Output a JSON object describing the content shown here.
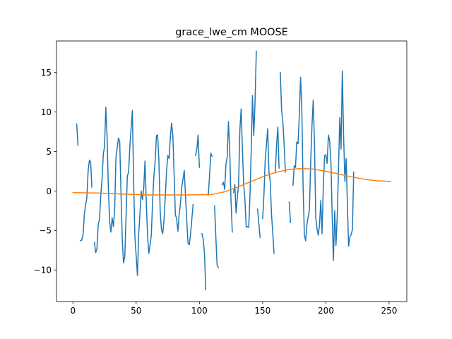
{
  "chart_data": {
    "type": "line",
    "title": "grace_lwe_cm MOOSE",
    "xlabel": "",
    "ylabel": "",
    "xlim": [
      -13,
      264
    ],
    "ylim": [
      -14,
      19
    ],
    "x_ticks": [
      0,
      50,
      100,
      150,
      200,
      250
    ],
    "y_ticks": [
      -10,
      -5,
      0,
      5,
      10,
      15
    ],
    "grid": false,
    "series": [
      {
        "color": "#1f77b4",
        "segments": [
          [
            [
              3,
              8.5
            ],
            [
              4,
              5.8
            ]
          ],
          [
            [
              6,
              -6.3
            ],
            [
              7,
              -6.2
            ],
            [
              8,
              -5.5
            ],
            [
              9,
              -3
            ],
            [
              10,
              -1.8
            ],
            [
              11,
              -0.8
            ],
            [
              12,
              2.6
            ],
            [
              13,
              3.9
            ],
            [
              14,
              3.7
            ],
            [
              15,
              0.5
            ]
          ],
          [
            [
              17,
              -6.5
            ],
            [
              18,
              -7.8
            ],
            [
              19,
              -7.3
            ],
            [
              20,
              -4.2
            ],
            [
              21,
              -3.6
            ],
            [
              22,
              -0.5
            ],
            [
              23,
              1.5
            ],
            [
              24,
              4.7
            ],
            [
              25,
              5.6
            ],
            [
              26,
              10.6
            ],
            [
              27,
              7
            ],
            [
              28,
              0.5
            ],
            [
              29,
              -3.9
            ],
            [
              30,
              -5.2
            ],
            [
              31,
              -3.4
            ],
            [
              32,
              -4.5
            ],
            [
              33,
              -2.2
            ],
            [
              34,
              4.3
            ],
            [
              35,
              5.4
            ],
            [
              36,
              6.7
            ],
            [
              37,
              6.3
            ],
            [
              38,
              -0.2
            ],
            [
              39,
              -6.1
            ],
            [
              40,
              -9.1
            ],
            [
              41,
              -8.3
            ],
            [
              42,
              -3.2
            ],
            [
              43,
              1.9
            ],
            [
              44,
              2.4
            ],
            [
              45,
              5.7
            ],
            [
              46,
              7.8
            ],
            [
              47,
              10.2
            ],
            [
              48,
              1.3
            ],
            [
              49,
              -5.8
            ],
            [
              50,
              -8.2
            ],
            [
              51,
              -10.7
            ],
            [
              52,
              -5.4
            ],
            [
              53,
              -2.8
            ],
            [
              54,
              0
            ],
            [
              55,
              -1.1
            ],
            [
              56,
              0.5
            ],
            [
              57,
              3.8
            ],
            [
              58,
              -1.4
            ],
            [
              59,
              -5.5
            ],
            [
              60,
              -7.9
            ],
            [
              61,
              -6.8
            ],
            [
              62,
              -5.5
            ],
            [
              63,
              -1.3
            ],
            [
              64,
              1.9
            ],
            [
              65,
              3.8
            ],
            [
              66,
              7
            ],
            [
              67,
              7.1
            ],
            [
              68,
              3.8
            ],
            [
              69,
              -2.5
            ],
            [
              70,
              -4.9
            ],
            [
              71,
              -5.4
            ],
            [
              72,
              -3.7
            ],
            [
              73,
              -0.8
            ],
            [
              74,
              2.5
            ],
            [
              75,
              4.5
            ],
            [
              76,
              4.1
            ],
            [
              77,
              6.8
            ],
            [
              78,
              8.6
            ],
            [
              79,
              7.1
            ],
            [
              80,
              2.2
            ],
            [
              81,
              -3
            ],
            [
              82,
              -3.5
            ],
            [
              83,
              -5.1
            ],
            [
              84,
              -2.9
            ],
            [
              85,
              -1.6
            ],
            [
              86,
              0.5
            ],
            [
              87,
              1.5
            ],
            [
              88,
              2.6
            ],
            [
              89,
              -0.5
            ],
            [
              90,
              -3.7
            ],
            [
              91,
              -6.6
            ],
            [
              92,
              -6.8
            ],
            [
              93,
              -5.5
            ],
            [
              94,
              -3.6
            ],
            [
              95,
              -1.7
            ]
          ],
          [
            [
              97,
              4.5
            ],
            [
              98,
              5.4
            ],
            [
              99,
              7.1
            ],
            [
              100,
              3
            ]
          ],
          [
            [
              102,
              -5.4
            ],
            [
              103,
              -6.1
            ],
            [
              104,
              -7.9
            ],
            [
              105,
              -12.5
            ]
          ],
          [
            [
              107,
              -0.5
            ],
            [
              108,
              1.9
            ],
            [
              109,
              4.8
            ],
            [
              110,
              4.4
            ]
          ],
          [
            [
              112,
              -1.9
            ],
            [
              113,
              -5.8
            ],
            [
              114,
              -9.4
            ],
            [
              115,
              -9.7
            ]
          ],
          [
            [
              118,
              0.8
            ],
            [
              119,
              1.1
            ],
            [
              120,
              0.2
            ],
            [
              121,
              3.4
            ],
            [
              122,
              4.3
            ],
            [
              123,
              8.8
            ],
            [
              124,
              5.1
            ],
            [
              125,
              -1.3
            ],
            [
              126,
              -5.2
            ]
          ],
          [
            [
              127,
              -0.2
            ],
            [
              128,
              0.8
            ],
            [
              129,
              -2.8
            ],
            [
              130,
              -0.7
            ],
            [
              131,
              0.8
            ],
            [
              132,
              7.7
            ],
            [
              133,
              10.4
            ],
            [
              134,
              5.4
            ],
            [
              135,
              0.9
            ],
            [
              136,
              -1.1
            ],
            [
              137,
              -4.6
            ],
            [
              138,
              -4.5
            ],
            [
              139,
              -4.6
            ],
            [
              140,
              -0.4
            ],
            [
              141,
              5.5
            ],
            [
              142,
              12.1
            ],
            [
              143,
              7
            ],
            [
              144,
              11.2
            ],
            [
              145,
              17.7
            ]
          ],
          [
            [
              146,
              -2.3
            ],
            [
              147,
              -4.1
            ],
            [
              148,
              -5.9
            ]
          ],
          [
            [
              150,
              -3.5
            ],
            [
              151,
              -0.5
            ],
            [
              152,
              3.9
            ],
            [
              153,
              5.7
            ],
            [
              154,
              7.9
            ],
            [
              155,
              2.4
            ],
            [
              156,
              1.3
            ],
            [
              157,
              -2.9
            ],
            [
              158,
              -5.3
            ],
            [
              159,
              -7.9
            ]
          ],
          [
            [
              160,
              2.3
            ],
            [
              161,
              5.8
            ],
            [
              162,
              8.1
            ],
            [
              163,
              2.9
            ]
          ],
          [
            [
              164,
              15
            ],
            [
              165,
              10.3
            ],
            [
              166,
              8.7
            ],
            [
              167,
              5.9
            ],
            [
              168,
              2.4
            ]
          ],
          [
            [
              171,
              -1.4
            ],
            [
              172,
              -4
            ]
          ],
          [
            [
              174,
              0.7
            ],
            [
              175,
              3.2
            ],
            [
              176,
              3
            ],
            [
              177,
              6.2
            ],
            [
              178,
              6
            ],
            [
              179,
              9.6
            ],
            [
              180,
              14.4
            ],
            [
              181,
              10.2
            ],
            [
              182,
              0.4
            ],
            [
              183,
              -5.6
            ],
            [
              184,
              -6.3
            ],
            [
              185,
              -4.3
            ],
            [
              186,
              -3.3
            ],
            [
              187,
              -2.4
            ],
            [
              188,
              3.6
            ],
            [
              189,
              8.2
            ],
            [
              190,
              11.5
            ],
            [
              191,
              6.1
            ],
            [
              192,
              -3.4
            ],
            [
              193,
              -4.8
            ],
            [
              194,
              -5.6
            ],
            [
              195,
              -4.3
            ],
            [
              196,
              -1.2
            ],
            [
              197,
              -5.4
            ],
            [
              198,
              0.6
            ],
            [
              199,
              4.5
            ],
            [
              200,
              4.6
            ],
            [
              201,
              3.5
            ],
            [
              202,
              7.1
            ],
            [
              203,
              6.3
            ],
            [
              204,
              3.6
            ],
            [
              205,
              -3.4
            ],
            [
              206,
              -8.8
            ],
            [
              207,
              -2.5
            ],
            [
              208,
              -6.9
            ],
            [
              209,
              -3.2
            ],
            [
              210,
              2.8
            ],
            [
              211,
              9.3
            ],
            [
              212,
              5.3
            ],
            [
              213,
              15.2
            ],
            [
              214,
              7.1
            ],
            [
              215,
              1.2
            ],
            [
              216,
              4.1
            ],
            [
              217,
              -1.4
            ],
            [
              218,
              -7
            ],
            [
              219,
              -5.8
            ],
            [
              220,
              -5.5
            ],
            [
              221,
              -4.9
            ],
            [
              222,
              2.4
            ]
          ]
        ]
      },
      {
        "color": "#ff7f0e",
        "points": [
          [
            0,
            -0.2
          ],
          [
            20,
            -0.25
          ],
          [
            40,
            -0.4
          ],
          [
            60,
            -0.5
          ],
          [
            80,
            -0.5
          ],
          [
            100,
            -0.48
          ],
          [
            110,
            -0.42
          ],
          [
            120,
            -0.1
          ],
          [
            130,
            0.5
          ],
          [
            140,
            1.15
          ],
          [
            150,
            1.8
          ],
          [
            160,
            2.35
          ],
          [
            170,
            2.7
          ],
          [
            180,
            2.85
          ],
          [
            190,
            2.78
          ],
          [
            200,
            2.5
          ],
          [
            210,
            2.15
          ],
          [
            220,
            1.8
          ],
          [
            230,
            1.5
          ],
          [
            240,
            1.3
          ],
          [
            251,
            1.2
          ]
        ]
      }
    ]
  }
}
